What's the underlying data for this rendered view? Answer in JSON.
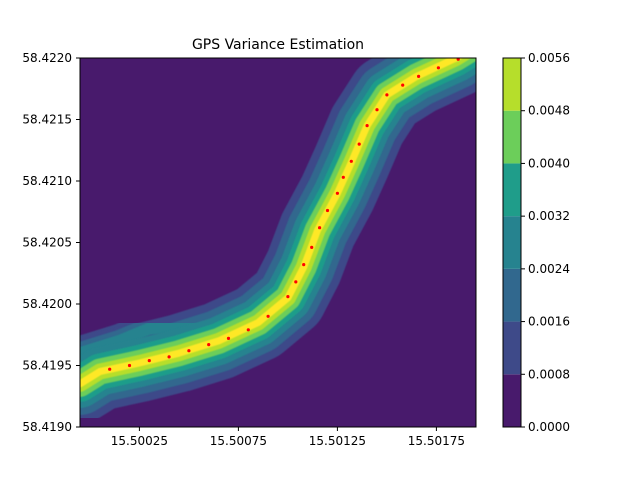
{
  "chart_data": {
    "type": "contour",
    "title": "GPS Variance Estimation",
    "xlabel": "",
    "ylabel": "",
    "xlim": [
      15.49995,
      15.50195
    ],
    "ylim": [
      58.419,
      58.422
    ],
    "x_ticks": [
      15.50025,
      15.50075,
      15.50125,
      15.50175
    ],
    "x_tick_labels": [
      "15.50025",
      "15.50075",
      "15.50125",
      "15.50175"
    ],
    "y_ticks": [
      58.419,
      58.4195,
      58.42,
      58.4205,
      58.421,
      58.4215,
      58.422
    ],
    "y_tick_labels": [
      "58.4190",
      "58.4195",
      "58.4200",
      "58.4205",
      "58.4210",
      "58.4215",
      "58.4220"
    ],
    "colorbar": {
      "levels": [
        0.0,
        0.0008,
        0.0016,
        0.0024,
        0.0032,
        0.004,
        0.0048,
        0.0056
      ],
      "tick_labels": [
        "0.0000",
        "0.0008",
        "0.0016",
        "0.0024",
        "0.0032",
        "0.0040",
        "0.0048",
        "0.0056"
      ],
      "colors": [
        "#481a6c",
        "#3e4a89",
        "#31688e",
        "#26838f",
        "#1f9d8a",
        "#6cce5a",
        "#b6de2b",
        "#fee825"
      ]
    },
    "background_color": "#481a6c",
    "scatter_color": "#ff0000",
    "track_path": [
      [
        15.49995,
        58.41935
      ],
      [
        15.50005,
        58.41945
      ],
      [
        15.50025,
        58.41952
      ],
      [
        15.50045,
        58.4196
      ],
      [
        15.50065,
        58.4197
      ],
      [
        15.50085,
        58.41985
      ],
      [
        15.501,
        58.42005
      ],
      [
        15.50108,
        58.4203
      ],
      [
        15.50115,
        58.4206
      ],
      [
        15.50125,
        58.4209
      ],
      [
        15.50132,
        58.42115
      ],
      [
        15.5014,
        58.42145
      ],
      [
        15.5015,
        58.4217
      ],
      [
        15.50165,
        58.42185
      ],
      [
        15.50185,
        58.422
      ],
      [
        15.50195,
        58.4221
      ]
    ],
    "branch_path": [
      [
        15.49995,
        58.4196
      ],
      [
        15.50015,
        58.4197
      ],
      [
        15.5003,
        58.4198
      ],
      [
        15.50045,
        58.41982
      ],
      [
        15.5006,
        58.4198
      ],
      [
        15.50075,
        58.41978
      ]
    ],
    "scatter_points": [
      [
        15.5001,
        58.41947
      ],
      [
        15.5002,
        58.4195
      ],
      [
        15.5003,
        58.41954
      ],
      [
        15.5004,
        58.41957
      ],
      [
        15.5005,
        58.41962
      ],
      [
        15.5006,
        58.41967
      ],
      [
        15.5007,
        58.41972
      ],
      [
        15.5008,
        58.41979
      ],
      [
        15.5009,
        58.4199
      ],
      [
        15.501,
        58.42006
      ],
      [
        15.50104,
        58.42018
      ],
      [
        15.50108,
        58.42032
      ],
      [
        15.50112,
        58.42046
      ],
      [
        15.50116,
        58.42062
      ],
      [
        15.5012,
        58.42076
      ],
      [
        15.50125,
        58.4209
      ],
      [
        15.50128,
        58.42103
      ],
      [
        15.50132,
        58.42116
      ],
      [
        15.50136,
        58.4213
      ],
      [
        15.5014,
        58.42145
      ],
      [
        15.50145,
        58.42158
      ],
      [
        15.5015,
        58.4217
      ],
      [
        15.50158,
        58.42178
      ],
      [
        15.50166,
        58.42185
      ],
      [
        15.50176,
        58.42192
      ],
      [
        15.50186,
        58.42199
      ]
    ]
  }
}
